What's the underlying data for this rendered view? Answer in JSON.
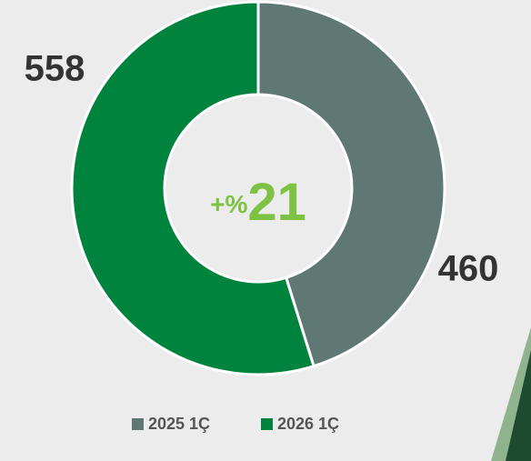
{
  "chart_data": {
    "type": "donut",
    "categories": [
      "2025 1Ç",
      "2026 1Ç"
    ],
    "values": [
      460,
      558
    ],
    "colors": [
      "#5f7873",
      "#00843d"
    ],
    "center_prefix": "+%",
    "center_value": 21,
    "legend": "bottom"
  }
}
